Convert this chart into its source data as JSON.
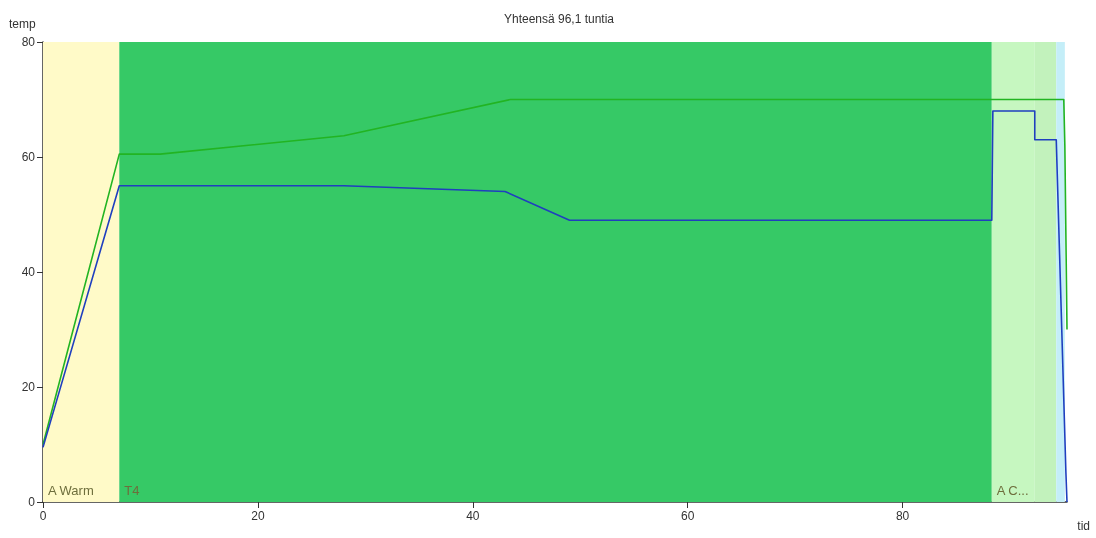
{
  "chart_data": {
    "type": "line",
    "title": "Yhteensä 96,1 tuntia",
    "xlabel": "tid",
    "ylabel": "temp",
    "xlim": [
      0,
      95.3
    ],
    "ylim": [
      0,
      80
    ],
    "xticks": [
      0,
      20,
      40,
      60,
      80
    ],
    "yticks": [
      0,
      20,
      40,
      60,
      80
    ],
    "grid": false,
    "marker": "none",
    "line_style": "solid",
    "series": [
      {
        "color": "#22b422",
        "x": [
          0,
          7.1,
          10.9,
          28,
          43.5,
          95,
          95.1,
          95.3
        ],
        "values": [
          10,
          60.5,
          60.5,
          63.7,
          70,
          70,
          62,
          30
        ]
      },
      {
        "color": "#1f3fbf",
        "x": [
          0,
          7.1,
          28,
          43,
          49,
          88.3,
          88.4,
          92.3,
          92.3,
          94.3,
          95.2,
          95.3
        ],
        "values": [
          9.5,
          55,
          55,
          54,
          49,
          49,
          68,
          68,
          63,
          63,
          5,
          0
        ]
      }
    ],
    "bands": [
      {
        "axis": "x",
        "from": 0,
        "to": 7.1,
        "label": "A Warm",
        "color": "#fffac8"
      },
      {
        "axis": "x",
        "from": 7.1,
        "to": 88.3,
        "label": "T4",
        "color": "#36c966"
      },
      {
        "axis": "x",
        "from": 88.3,
        "to": 92.3,
        "label": "A C...",
        "color": "#c6f7c0"
      },
      {
        "axis": "x",
        "from": 92.3,
        "to": 94.3,
        "label": null,
        "color": "#c2f2bc"
      },
      {
        "axis": "x",
        "from": 94.3,
        "to": 95.1,
        "label": null,
        "color": "#c4eef8"
      }
    ]
  }
}
